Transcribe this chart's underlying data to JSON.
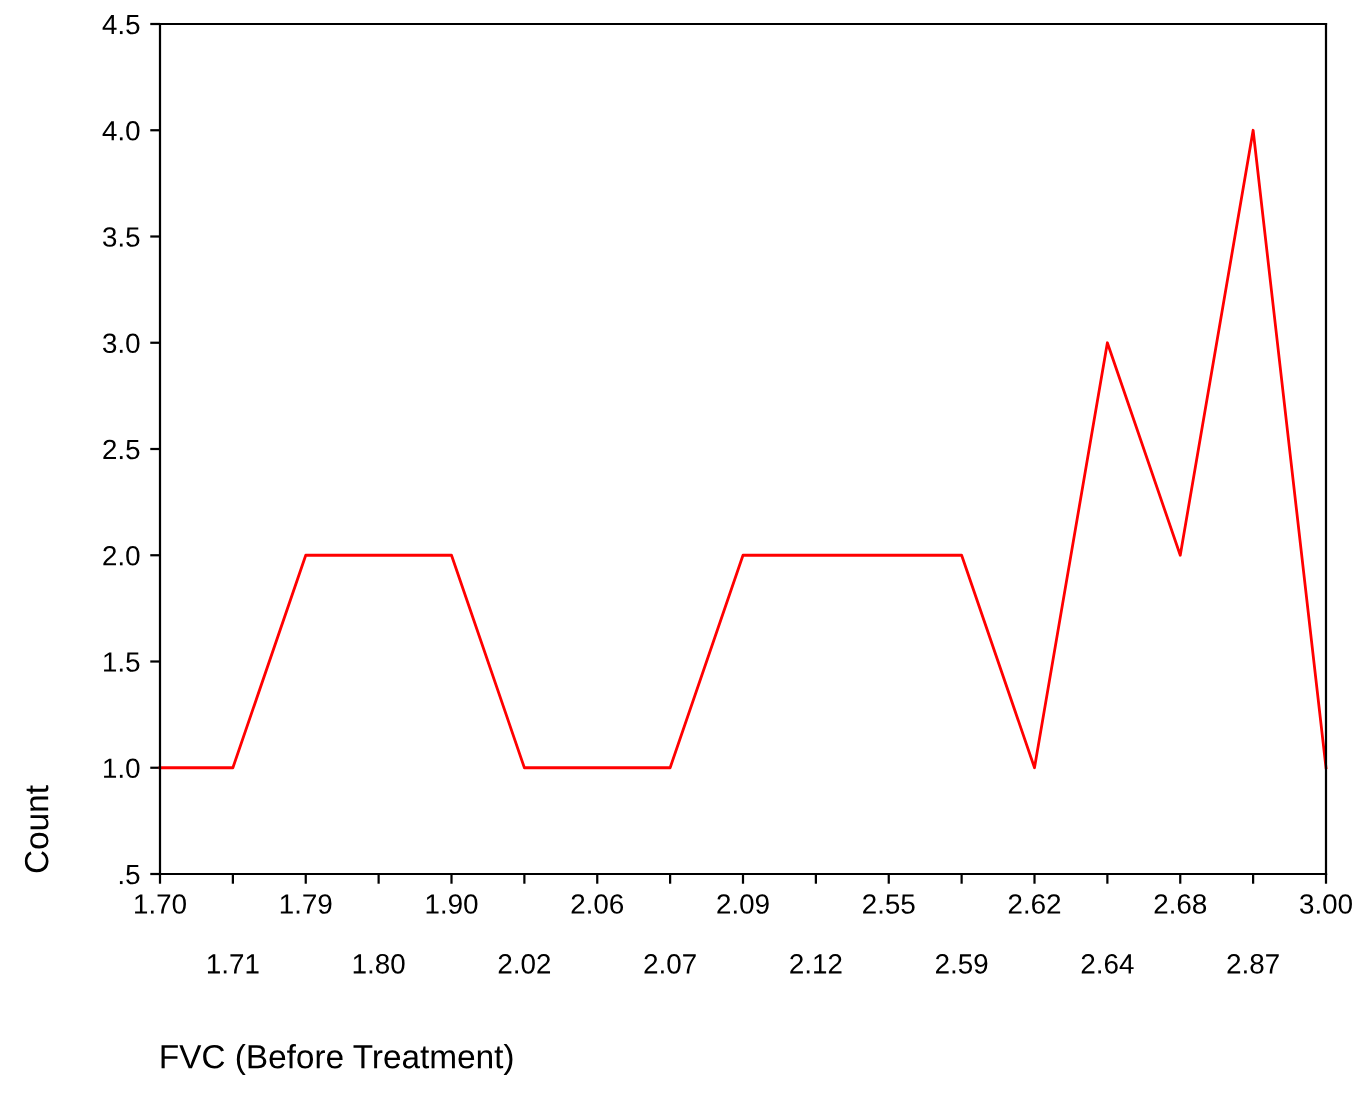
{
  "chart_data": {
    "type": "line",
    "xlabel": "FVC (Before Treatment)",
    "ylabel": "Count",
    "categories": [
      "1.70",
      "1.71",
      "1.79",
      "1.80",
      "1.90",
      "2.02",
      "2.06",
      "2.07",
      "2.09",
      "2.12",
      "2.55",
      "2.59",
      "2.62",
      "2.64",
      "2.68",
      "2.87",
      "3.00"
    ],
    "series": [
      {
        "color": "#ff0000",
        "values": [
          1,
          1,
          2,
          2,
          2,
          1,
          1,
          1,
          2,
          2,
          2,
          2,
          1,
          3,
          2,
          4,
          1
        ]
      }
    ],
    "ylim": [
      0.5,
      4.5
    ],
    "yticks": [
      {
        "value": 0.5,
        "label": ".5"
      },
      {
        "value": 1.0,
        "label": "1.0"
      },
      {
        "value": 1.5,
        "label": "1.5"
      },
      {
        "value": 2.0,
        "label": "2.0"
      },
      {
        "value": 2.5,
        "label": "2.5"
      },
      {
        "value": 3.0,
        "label": "3.0"
      },
      {
        "value": 3.5,
        "label": "3.5"
      },
      {
        "value": 4.0,
        "label": "4.0"
      },
      {
        "value": 4.5,
        "label": "4.5"
      }
    ],
    "grid": false,
    "legend": false,
    "marker": "none",
    "line_style": "solid"
  }
}
